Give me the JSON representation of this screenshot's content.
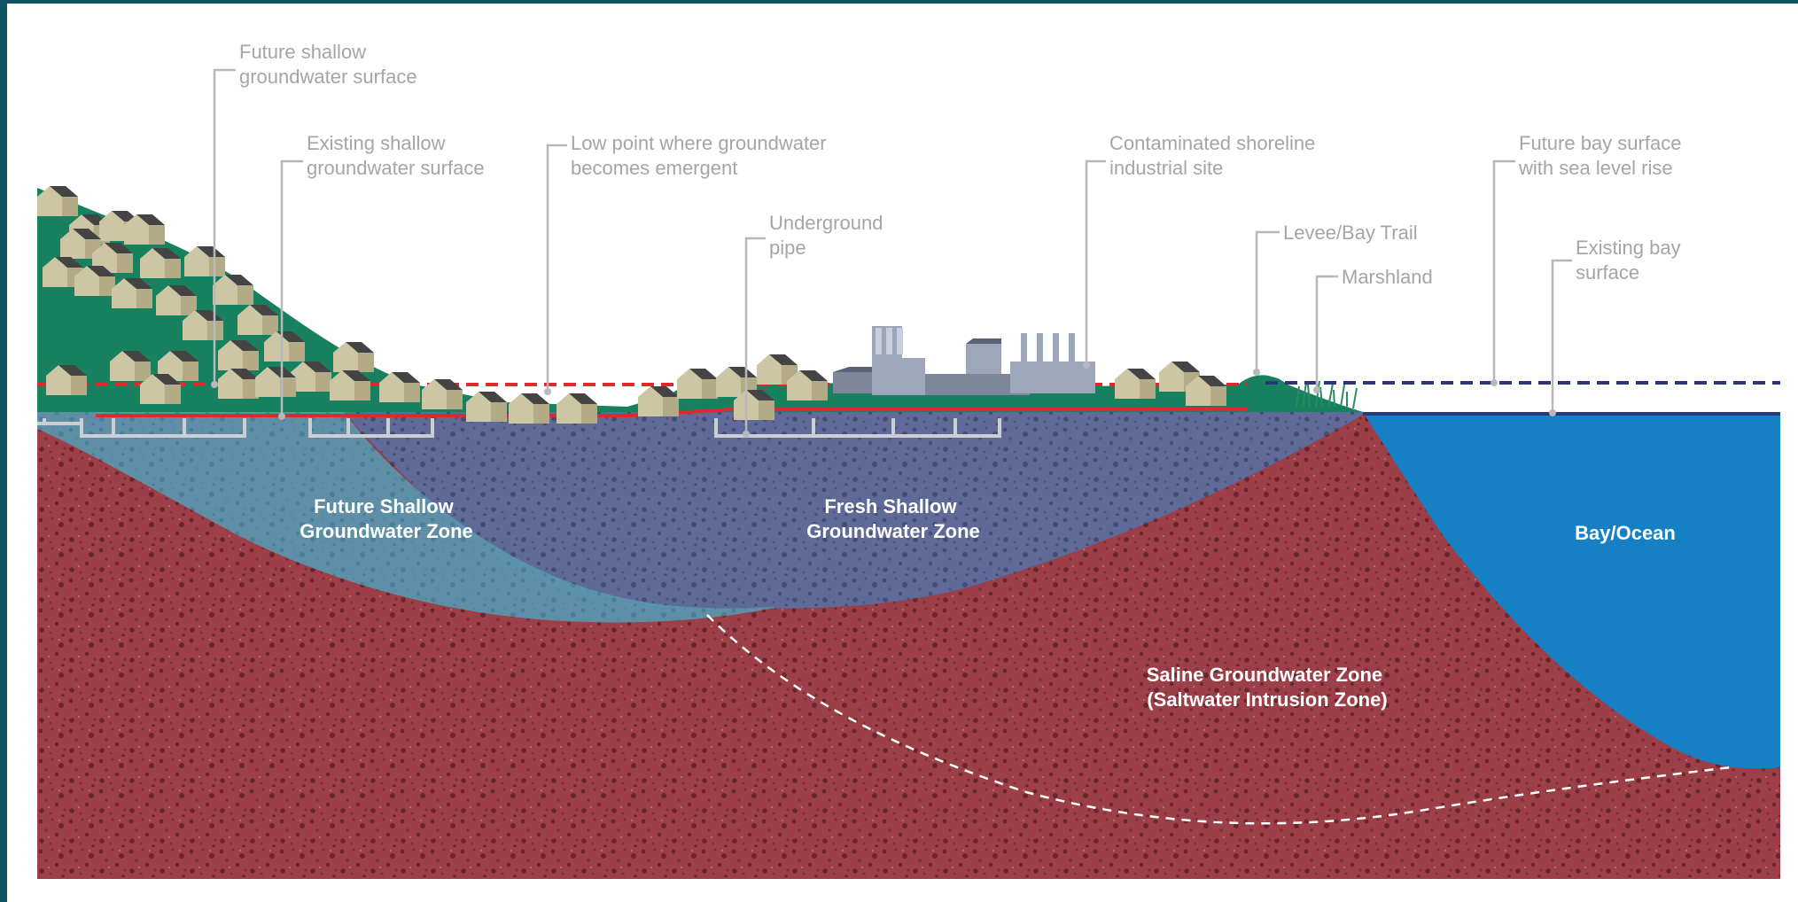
{
  "callouts": {
    "future_shallow": [
      "Future shallow",
      "groundwater surface"
    ],
    "existing_shallow": [
      "Existing shallow",
      "groundwater surface"
    ],
    "low_point": [
      "Low point where groundwater",
      "becomes emergent"
    ],
    "underground_pipe": [
      "Underground",
      "pipe"
    ],
    "contaminated_site": [
      "Contaminated shoreline",
      "industrial site"
    ],
    "levee": [
      "Levee/Bay Trail"
    ],
    "marshland": [
      "Marshland"
    ],
    "future_bay": [
      "Future bay surface",
      "with sea level rise"
    ],
    "existing_bay": [
      "Existing bay",
      "surface"
    ]
  },
  "zones": {
    "future_shallow": [
      "Future Shallow",
      "Groundwater Zone"
    ],
    "fresh_shallow": [
      "Fresh Shallow",
      "Groundwater Zone"
    ],
    "bay_ocean": [
      "Bay/Ocean"
    ],
    "saline": [
      "Saline Groundwater Zone",
      "(Saltwater Intrusion Zone)"
    ]
  },
  "colors": {
    "frame": "#0d5562",
    "saline_soil": "#9c3f48",
    "fresh_groundwater": "#5f6a98",
    "future_groundwater": "#5c93ac",
    "bay": "#1580c4",
    "land": "#17805f",
    "future_groundwater_line": "#e2282f",
    "future_bay_line": "#2a357c",
    "callout_text": "#a3a5a8",
    "house_wall": "#cdc6a4",
    "house_roof": "#444444",
    "factory": "#9ea6ba"
  }
}
